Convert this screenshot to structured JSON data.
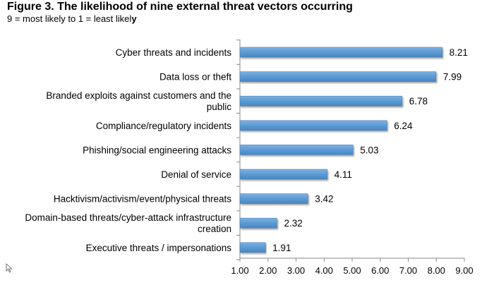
{
  "title": "Figure 3. The likelihood of nine external threat vectors occurring",
  "subtitle_main": "9 = most likely to 1 = least likel",
  "subtitle_bold": "y",
  "chart_data": {
    "type": "bar",
    "orientation": "horizontal",
    "categories": [
      [
        "Cyber threats and incidents"
      ],
      [
        "Data loss or theft"
      ],
      [
        "Branded exploits against customers and the",
        "public"
      ],
      [
        "Compliance/regulatory incidents"
      ],
      [
        "Phishing/social engineering attacks"
      ],
      [
        "Denial of service"
      ],
      [
        "Hacktivism/activism/event/physical threats"
      ],
      [
        "Domain-based threats/cyber-attack infrastructure",
        "creation"
      ],
      [
        "Executive threats / impersonations"
      ]
    ],
    "values": [
      8.21,
      7.99,
      6.78,
      6.24,
      5.03,
      4.11,
      3.42,
      2.32,
      1.91
    ],
    "value_labels": [
      "8.21",
      "7.99",
      "6.78",
      "6.24",
      "5.03",
      "4.11",
      "3.42",
      "2.32",
      "1.91"
    ],
    "xlim": [
      1,
      9
    ],
    "xticks": [
      "1.00",
      "2.00",
      "3.00",
      "4.00",
      "5.00",
      "6.00",
      "7.00",
      "8.00",
      "9.00"
    ],
    "bar_color": "#5b9bd5",
    "grid": false,
    "legend": "none"
  }
}
